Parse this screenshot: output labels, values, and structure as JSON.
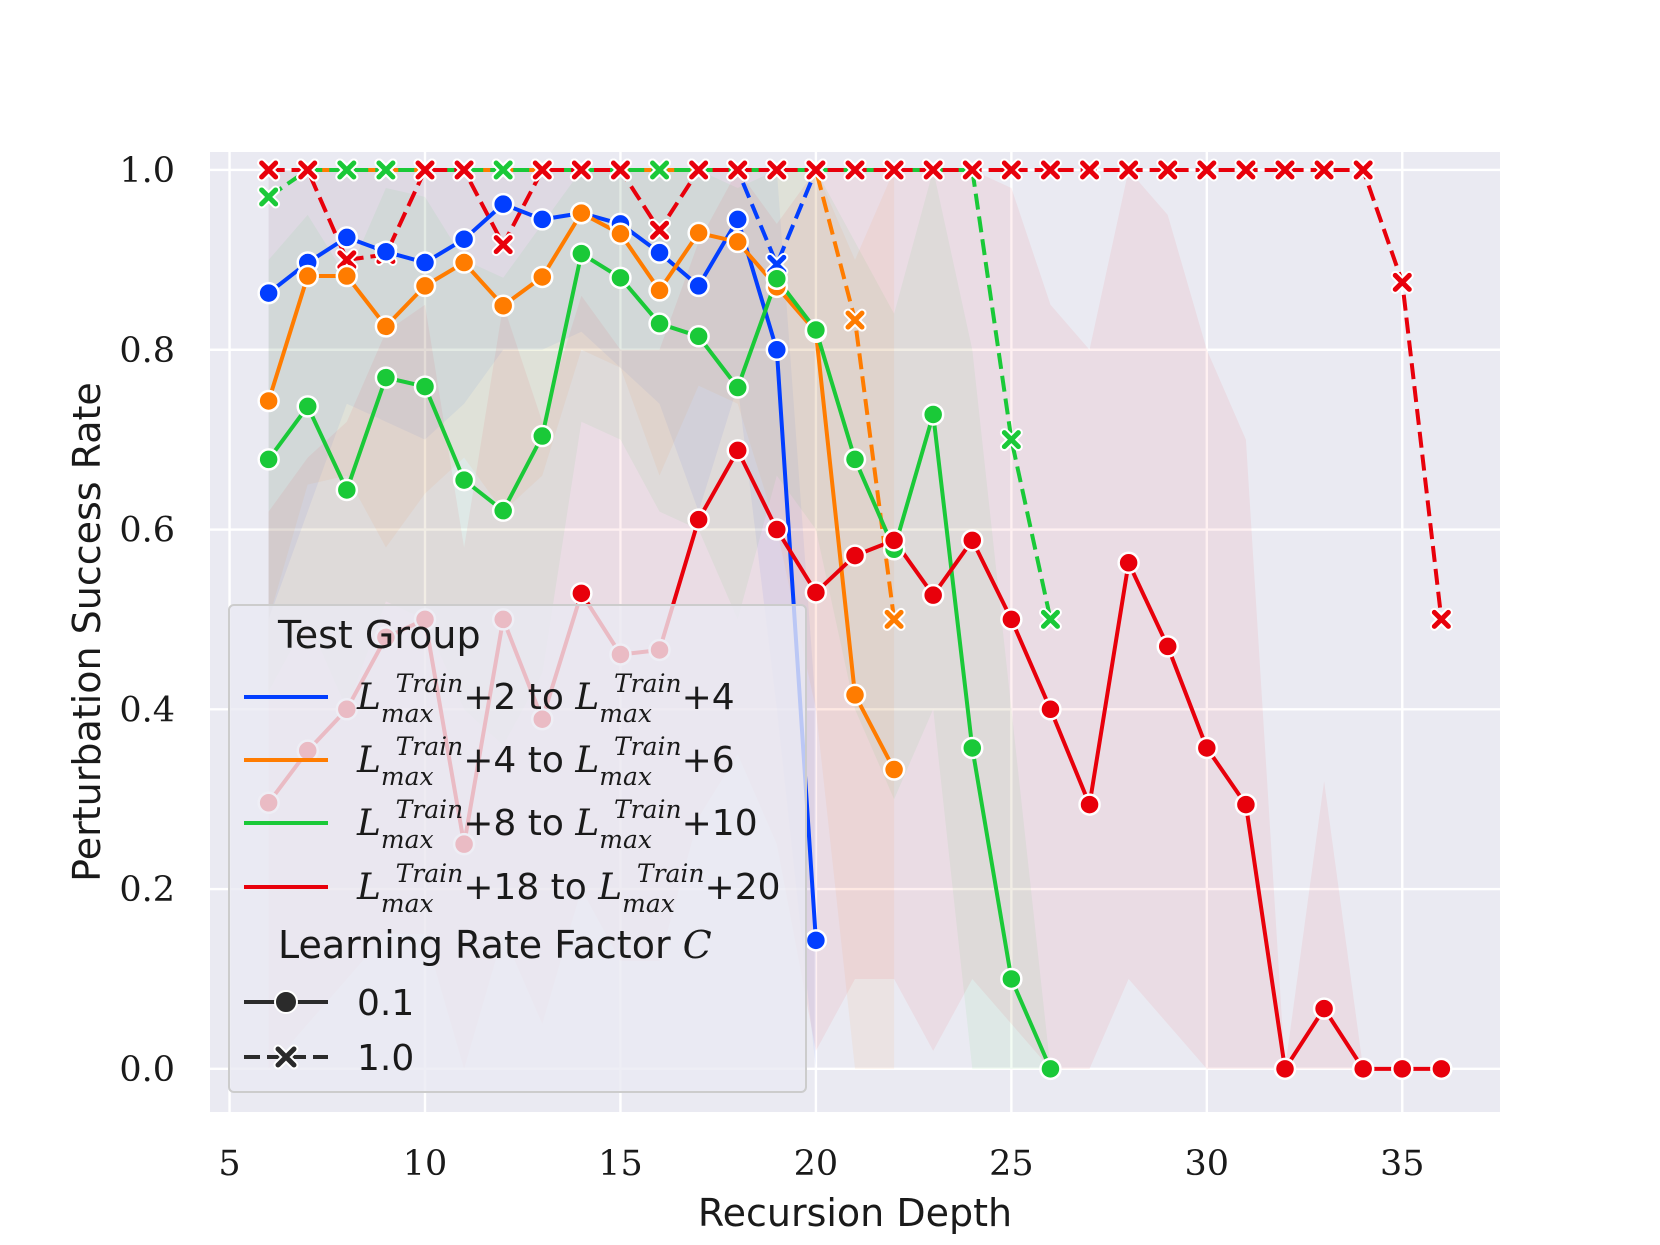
{
  "chart_data": {
    "type": "line",
    "title": "",
    "xlabel": "Recursion Depth",
    "ylabel": "Perturbation Success Rate",
    "xlim": [
      4.5,
      37.5
    ],
    "ylim": [
      -0.048,
      1.02
    ],
    "xticks": [
      5,
      10,
      15,
      20,
      25,
      30,
      35
    ],
    "xtick_labels": [
      "5",
      "10",
      "15",
      "20",
      "25",
      "30",
      "35"
    ],
    "yticks": [
      0.0,
      0.2,
      0.4,
      0.6,
      0.8,
      1.0
    ],
    "ytick_labels": [
      "0.0",
      "0.2",
      "0.4",
      "0.6",
      "0.8",
      "1.0"
    ],
    "grid": true,
    "legend": {
      "placement": "lower-left",
      "group_title": "Test Group",
      "groups": [
        {
          "label": "L_max^Train+2 to L_max^Train+4",
          "color": "#023eff",
          "parts": [
            "L",
            "max",
            "Train",
            "+2 to ",
            "L",
            "max",
            "Train",
            "+4"
          ]
        },
        {
          "label": "L_max^Train+4 to L_max^Train+6",
          "color": "#ff7c00",
          "parts": [
            "L",
            "max",
            "Train",
            "+4 to ",
            "L",
            "max",
            "Train",
            "+6"
          ]
        },
        {
          "label": "L_max^Train+8 to L_max^Train+10",
          "color": "#1ac938",
          "parts": [
            "L",
            "max",
            "Train",
            "+8 to ",
            "L",
            "max",
            "Train",
            "+10"
          ]
        },
        {
          "label": "L_max^Train+18 to L_max^Train+20",
          "color": "#e8000b",
          "parts": [
            "L",
            "max",
            "Train",
            "+18 to ",
            "L",
            "max",
            "Train",
            "+20"
          ]
        }
      ],
      "style_title": "Learning Rate Factor",
      "style_title_symbol": "C",
      "styles": [
        {
          "label": "0.1",
          "marker": "circle",
          "dash": "solid"
        },
        {
          "label": "1.0",
          "marker": "x",
          "dash": "dashed"
        }
      ]
    },
    "series": [
      {
        "name": "L_max^Train+2 to L_max^Train+4, C=0.1",
        "color": "#023eff",
        "marker": "circle",
        "dash": "solid",
        "x": [
          6,
          7,
          8,
          9,
          10,
          11,
          12,
          13,
          14,
          15,
          16,
          17,
          18,
          19,
          20
        ],
        "y": [
          0.863,
          0.897,
          0.925,
          0.909,
          0.897,
          0.923,
          0.962,
          0.945,
          0.952,
          0.94,
          0.908,
          0.871,
          0.945,
          0.8,
          0.143
        ],
        "band_lo": [
          0.5,
          0.62,
          0.74,
          0.72,
          0.7,
          0.74,
          0.8,
          0.8,
          0.82,
          0.78,
          0.74,
          0.62,
          0.76,
          0.4,
          0.0
        ],
        "band_hi": [
          1.0,
          1.0,
          1.0,
          1.0,
          1.0,
          1.0,
          1.0,
          1.0,
          1.0,
          1.0,
          1.0,
          1.0,
          1.0,
          1.0,
          0.4
        ]
      },
      {
        "name": "L_max^Train+4 to L_max^Train+6, C=0.1",
        "color": "#ff7c00",
        "marker": "circle",
        "dash": "solid",
        "x": [
          6,
          7,
          8,
          9,
          10,
          11,
          12,
          13,
          14,
          15,
          16,
          17,
          18,
          19,
          20,
          21,
          22
        ],
        "y": [
          0.743,
          0.882,
          0.882,
          0.826,
          0.871,
          0.897,
          0.849,
          0.881,
          0.952,
          0.929,
          0.866,
          0.93,
          0.92,
          0.87,
          0.82,
          0.416,
          0.333
        ],
        "band_lo": [
          0.5,
          0.65,
          0.66,
          0.58,
          0.64,
          0.68,
          0.62,
          0.66,
          0.8,
          0.78,
          0.66,
          0.76,
          0.74,
          0.6,
          0.4,
          0.0,
          0.0
        ],
        "band_hi": [
          1.0,
          1.0,
          1.0,
          1.0,
          1.0,
          1.0,
          1.0,
          1.0,
          1.0,
          1.0,
          1.0,
          1.0,
          1.0,
          1.0,
          1.0,
          0.9,
          1.0
        ]
      },
      {
        "name": "L_max^Train+8 to L_max^Train+10, C=0.1",
        "color": "#1ac938",
        "marker": "circle",
        "dash": "solid",
        "x": [
          6,
          7,
          8,
          9,
          10,
          11,
          12,
          13,
          14,
          15,
          16,
          17,
          18,
          19,
          20,
          21,
          22,
          23,
          24,
          25,
          26
        ],
        "y": [
          0.678,
          0.737,
          0.644,
          0.769,
          0.759,
          0.655,
          0.621,
          0.704,
          0.907,
          0.88,
          0.829,
          0.815,
          0.758,
          0.879,
          0.822,
          0.678,
          0.578,
          0.728,
          0.357,
          0.1,
          0.0
        ],
        "band_lo": [
          0.42,
          0.5,
          0.4,
          0.52,
          0.5,
          0.4,
          0.36,
          0.44,
          0.72,
          0.7,
          0.62,
          0.6,
          0.5,
          0.66,
          0.6,
          0.4,
          0.3,
          0.4,
          0.0,
          0.0,
          0.0
        ],
        "band_hi": [
          0.9,
          0.95,
          0.88,
          0.98,
          0.97,
          0.9,
          0.88,
          0.94,
          1.0,
          1.0,
          1.0,
          1.0,
          0.98,
          1.0,
          1.0,
          0.92,
          0.84,
          1.0,
          0.8,
          0.4,
          0.0
        ]
      },
      {
        "name": "L_max^Train+18 to L_max^Train+20, C=0.1",
        "color": "#e8000b",
        "marker": "circle",
        "dash": "solid",
        "x": [
          6,
          7,
          8,
          9,
          10,
          11,
          12,
          13,
          14,
          15,
          16,
          17,
          18,
          19,
          20,
          21,
          22,
          23,
          24,
          25,
          26,
          27,
          28,
          29,
          30,
          31,
          32,
          33,
          34,
          35,
          36
        ],
        "y": [
          0.296,
          0.354,
          0.4,
          0.48,
          0.5,
          0.25,
          0.5,
          0.389,
          0.529,
          0.461,
          0.466,
          0.611,
          0.688,
          0.6,
          0.53,
          0.571,
          0.588,
          0.527,
          0.588,
          0.5,
          0.4,
          0.294,
          0.563,
          0.47,
          0.357,
          0.294,
          0.0,
          0.067,
          0.0,
          0.0,
          0.0
        ],
        "band_lo": [
          0.0,
          0.05,
          0.1,
          0.15,
          0.15,
          0.0,
          0.15,
          0.05,
          0.2,
          0.12,
          0.12,
          0.28,
          0.35,
          0.25,
          0.02,
          0.1,
          0.1,
          0.02,
          0.1,
          0.05,
          0.0,
          0.0,
          0.1,
          0.05,
          0.0,
          0.0,
          0.0,
          0.0,
          0.0,
          0.0,
          0.0
        ],
        "band_hi": [
          0.62,
          0.68,
          0.72,
          0.82,
          0.85,
          0.58,
          0.85,
          0.72,
          0.86,
          0.8,
          0.8,
          0.92,
          1.0,
          0.94,
          1.0,
          1.0,
          1.0,
          1.0,
          1.0,
          0.98,
          0.85,
          0.8,
          1.0,
          0.95,
          0.8,
          0.7,
          0.0,
          0.32,
          0.0,
          0.0,
          0.0
        ]
      },
      {
        "name": "L_max^Train+2 to L_max^Train+4, C=1.0",
        "color": "#023eff",
        "marker": "x",
        "dash": "dashed",
        "x": [
          6,
          7,
          8,
          9,
          10,
          11,
          12,
          13,
          14,
          15,
          16,
          17,
          18,
          19,
          20
        ],
        "y": [
          1.0,
          1.0,
          1.0,
          1.0,
          1.0,
          1.0,
          1.0,
          1.0,
          1.0,
          1.0,
          1.0,
          1.0,
          1.0,
          0.895,
          1.0
        ]
      },
      {
        "name": "L_max^Train+4 to L_max^Train+6, C=1.0",
        "color": "#ff7c00",
        "marker": "x",
        "dash": "dashed",
        "x": [
          6,
          7,
          8,
          9,
          10,
          11,
          12,
          13,
          14,
          15,
          16,
          17,
          18,
          19,
          20,
          21,
          22
        ],
        "y": [
          1.0,
          1.0,
          1.0,
          1.0,
          1.0,
          1.0,
          1.0,
          1.0,
          1.0,
          1.0,
          1.0,
          1.0,
          1.0,
          1.0,
          1.0,
          0.833,
          0.5
        ]
      },
      {
        "name": "L_max^Train+8 to L_max^Train+10, C=1.0",
        "color": "#1ac938",
        "marker": "x",
        "dash": "dashed",
        "x": [
          6,
          7,
          8,
          9,
          10,
          11,
          12,
          13,
          14,
          15,
          16,
          17,
          18,
          19,
          20,
          21,
          22,
          23,
          24,
          25,
          26
        ],
        "y": [
          0.97,
          1.0,
          1.0,
          1.0,
          1.0,
          1.0,
          1.0,
          1.0,
          1.0,
          1.0,
          1.0,
          1.0,
          1.0,
          1.0,
          1.0,
          1.0,
          1.0,
          1.0,
          1.0,
          0.7,
          0.5
        ]
      },
      {
        "name": "L_max^Train+18 to L_max^Train+20, C=1.0",
        "color": "#e8000b",
        "marker": "x",
        "dash": "dashed",
        "x": [
          6,
          7,
          8,
          9,
          10,
          11,
          12,
          13,
          14,
          15,
          16,
          17,
          18,
          19,
          20,
          21,
          22,
          23,
          24,
          25,
          26,
          27,
          28,
          29,
          30,
          31,
          32,
          33,
          34,
          35,
          36
        ],
        "y": [
          1.0,
          1.0,
          0.9,
          0.906,
          1.0,
          1.0,
          0.917,
          1.0,
          1.0,
          1.0,
          0.933,
          1.0,
          1.0,
          1.0,
          1.0,
          1.0,
          1.0,
          1.0,
          1.0,
          1.0,
          1.0,
          1.0,
          1.0,
          1.0,
          1.0,
          1.0,
          1.0,
          1.0,
          1.0,
          0.875,
          0.5
        ]
      }
    ]
  }
}
